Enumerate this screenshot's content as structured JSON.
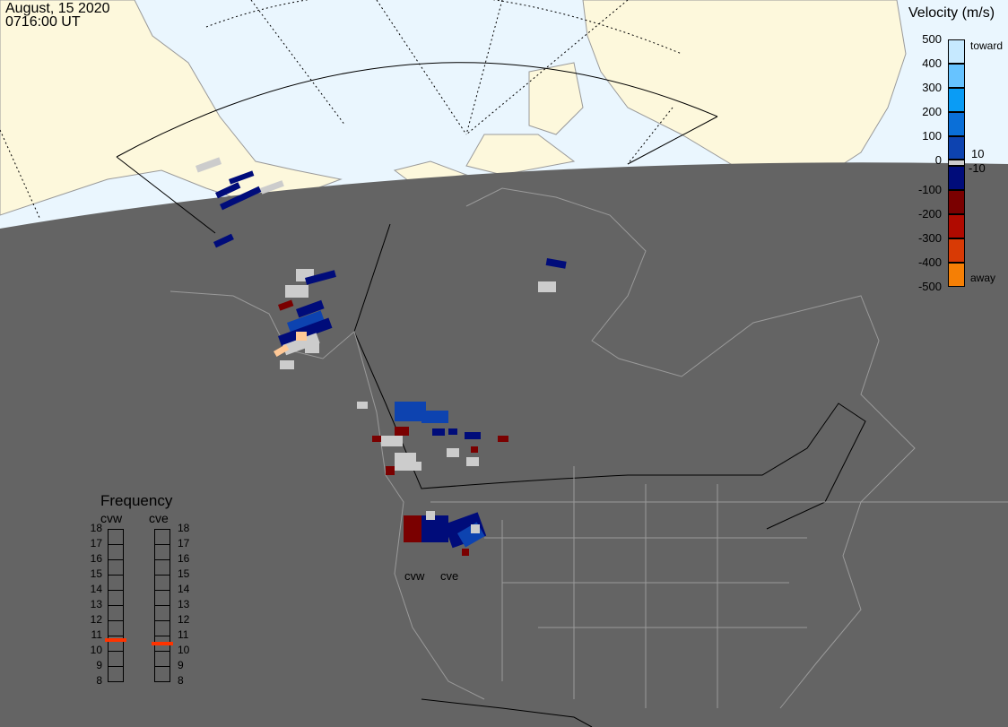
{
  "header": {
    "date": "August, 15 2020",
    "time": "0716:00 UT"
  },
  "colorbar": {
    "title": "Velocity (m/s)",
    "ticks": [
      "500",
      "400",
      "300",
      "200",
      "100",
      "0",
      "-100",
      "-200",
      "-300",
      "-400",
      "-500"
    ],
    "inner_ticks": [
      "10",
      "-10"
    ],
    "top_label": "toward",
    "bottom_label": "away",
    "colors": [
      "#c6e9ff",
      "#67c3ff",
      "#0a9cf5",
      "#0a6fd8",
      "#0d43b0",
      "#000c7a",
      "#7a0000",
      "#b00a00",
      "#d83a05",
      "#f57f05",
      "#ffc896",
      "#cccccc"
    ]
  },
  "frequency": {
    "title": "Frequency",
    "unit_range": [
      8,
      18
    ],
    "ticks": [
      "18",
      "17",
      "16",
      "15",
      "14",
      "13",
      "12",
      "11",
      "10",
      "9",
      "8"
    ],
    "radars": [
      {
        "name": "cvw",
        "value_mhz": 10.7
      },
      {
        "name": "cve",
        "value_mhz": 10.5
      }
    ],
    "marker_color": "#ff3300"
  },
  "map": {
    "radar_labels": [
      "cvw",
      "cve"
    ],
    "colors": {
      "night": "#646464",
      "day_ocean": "#eaf6fe",
      "day_land": "#fdf8dc",
      "coast": "#9a9a9a",
      "ground_scatter": "#cccccc"
    }
  }
}
